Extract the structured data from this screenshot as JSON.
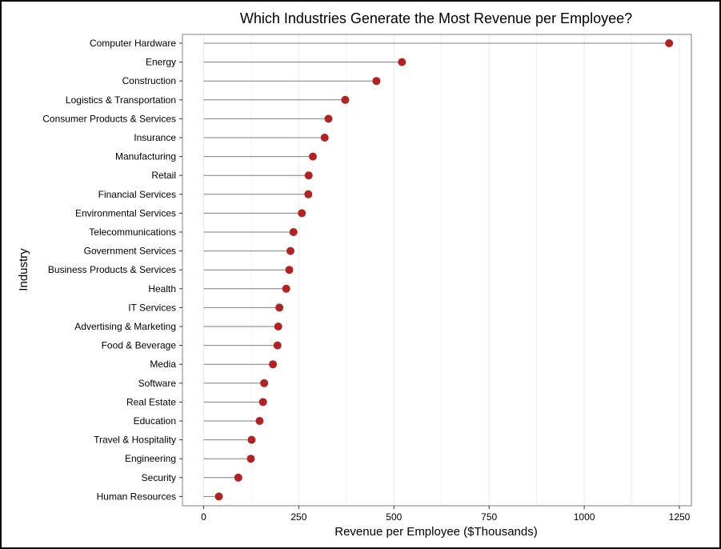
{
  "chart_data": {
    "type": "lollipop",
    "title": "Which Industries Generate the Most Revenue per Employee?",
    "xlabel": "Revenue per Employee ($Thousands)",
    "ylabel": "Industry",
    "xlim": [
      -50,
      1280
    ],
    "xticks": [
      0,
      250,
      500,
      750,
      1000,
      1250
    ],
    "grid": true,
    "colors": {
      "point": "#B22222",
      "segment": "#7f7f7f",
      "grid": "#ebebeb",
      "border": "#7f7f7f"
    },
    "categories": [
      "Computer Hardware",
      "Energy",
      "Construction",
      "Logistics & Transportation",
      "Consumer Products & Services",
      "Insurance",
      "Manufacturing",
      "Retail",
      "Financial Services",
      "Environmental Services",
      "Telecommunications",
      "Government Services",
      "Business Products & Services",
      "Health",
      "IT Services",
      "Advertising & Marketing",
      "Food & Beverage",
      "Media",
      "Software",
      "Real Estate",
      "Education",
      "Travel & Hospitality",
      "Engineering",
      "Security",
      "Human Resources"
    ],
    "values": [
      1223,
      521,
      454,
      372,
      328,
      318,
      287,
      276,
      275,
      258,
      236,
      228,
      225,
      217,
      199,
      196,
      194,
      182,
      159,
      156,
      147,
      126,
      124,
      91,
      40
    ]
  }
}
